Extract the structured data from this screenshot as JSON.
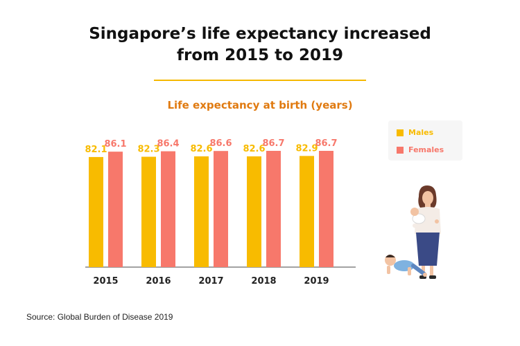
{
  "title_line1": "Singapore’s life expectancy increased",
  "title_line2": "from 2015 to 2019",
  "source": "Source: Global Burden of Disease 2019",
  "colors": {
    "males": "#f8bb00",
    "females": "#f7786b",
    "accent_rule": "#f5b800",
    "subtitle": "#e07a10"
  },
  "chart_data": {
    "type": "bar",
    "title": "Life expectancy at birth (years)",
    "categories": [
      "2015",
      "2016",
      "2017",
      "2018",
      "2019"
    ],
    "series": [
      {
        "name": "Males",
        "values": [
          82.1,
          82.3,
          82.6,
          82.6,
          82.9
        ],
        "labels": [
          "82.1",
          "82.3",
          "82.6",
          "82.6",
          "82.9"
        ]
      },
      {
        "name": "Females",
        "values": [
          86.1,
          86.4,
          86.6,
          86.7,
          86.7
        ],
        "labels": [
          "86.1",
          "86.4",
          "86.6",
          "86.7",
          "86.7"
        ]
      }
    ],
    "legend": "top-right",
    "grid": false,
    "ylim": [
      0,
      100
    ]
  },
  "illustration": {
    "icons": [
      "woman-holding-baby-icon",
      "crawling-baby-icon"
    ]
  }
}
